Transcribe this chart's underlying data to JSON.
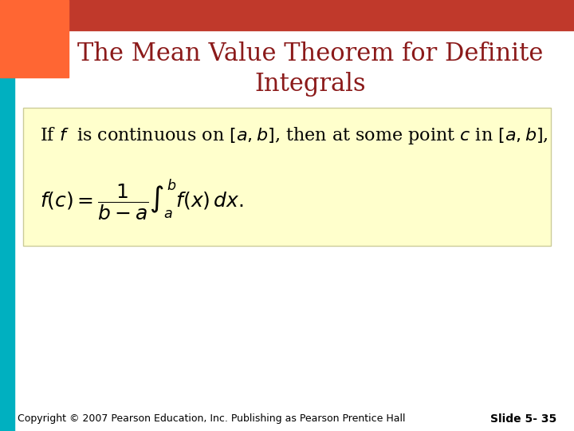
{
  "title_line1": "The Mean Value Theorem for Definite",
  "title_line2": "Integrals",
  "title_color": "#8B1A1A",
  "title_fontsize": 22,
  "bg_color": "#FFFFFF",
  "header_bar_color": "#C0392B",
  "left_bar_color": "#00B0C0",
  "orange_box_color": "#FF6633",
  "yellow_box_color": "#FFFFCC",
  "yellow_box_border": "#CCCC99",
  "formula_line1": "If $f$  is continuous on $[a,b]$, then at some point $c$ in $[a,b]$,",
  "formula_line2": "$f(c) = \\dfrac{1}{b-a}\\int_a^b f(x)\\,dx.$",
  "footer_left": "Copyright © 2007 Pearson Education, Inc. Publishing as Pearson Prentice Hall",
  "footer_right": "Slide 5- 35",
  "footer_fontsize": 9,
  "formula_fontsize": 16
}
